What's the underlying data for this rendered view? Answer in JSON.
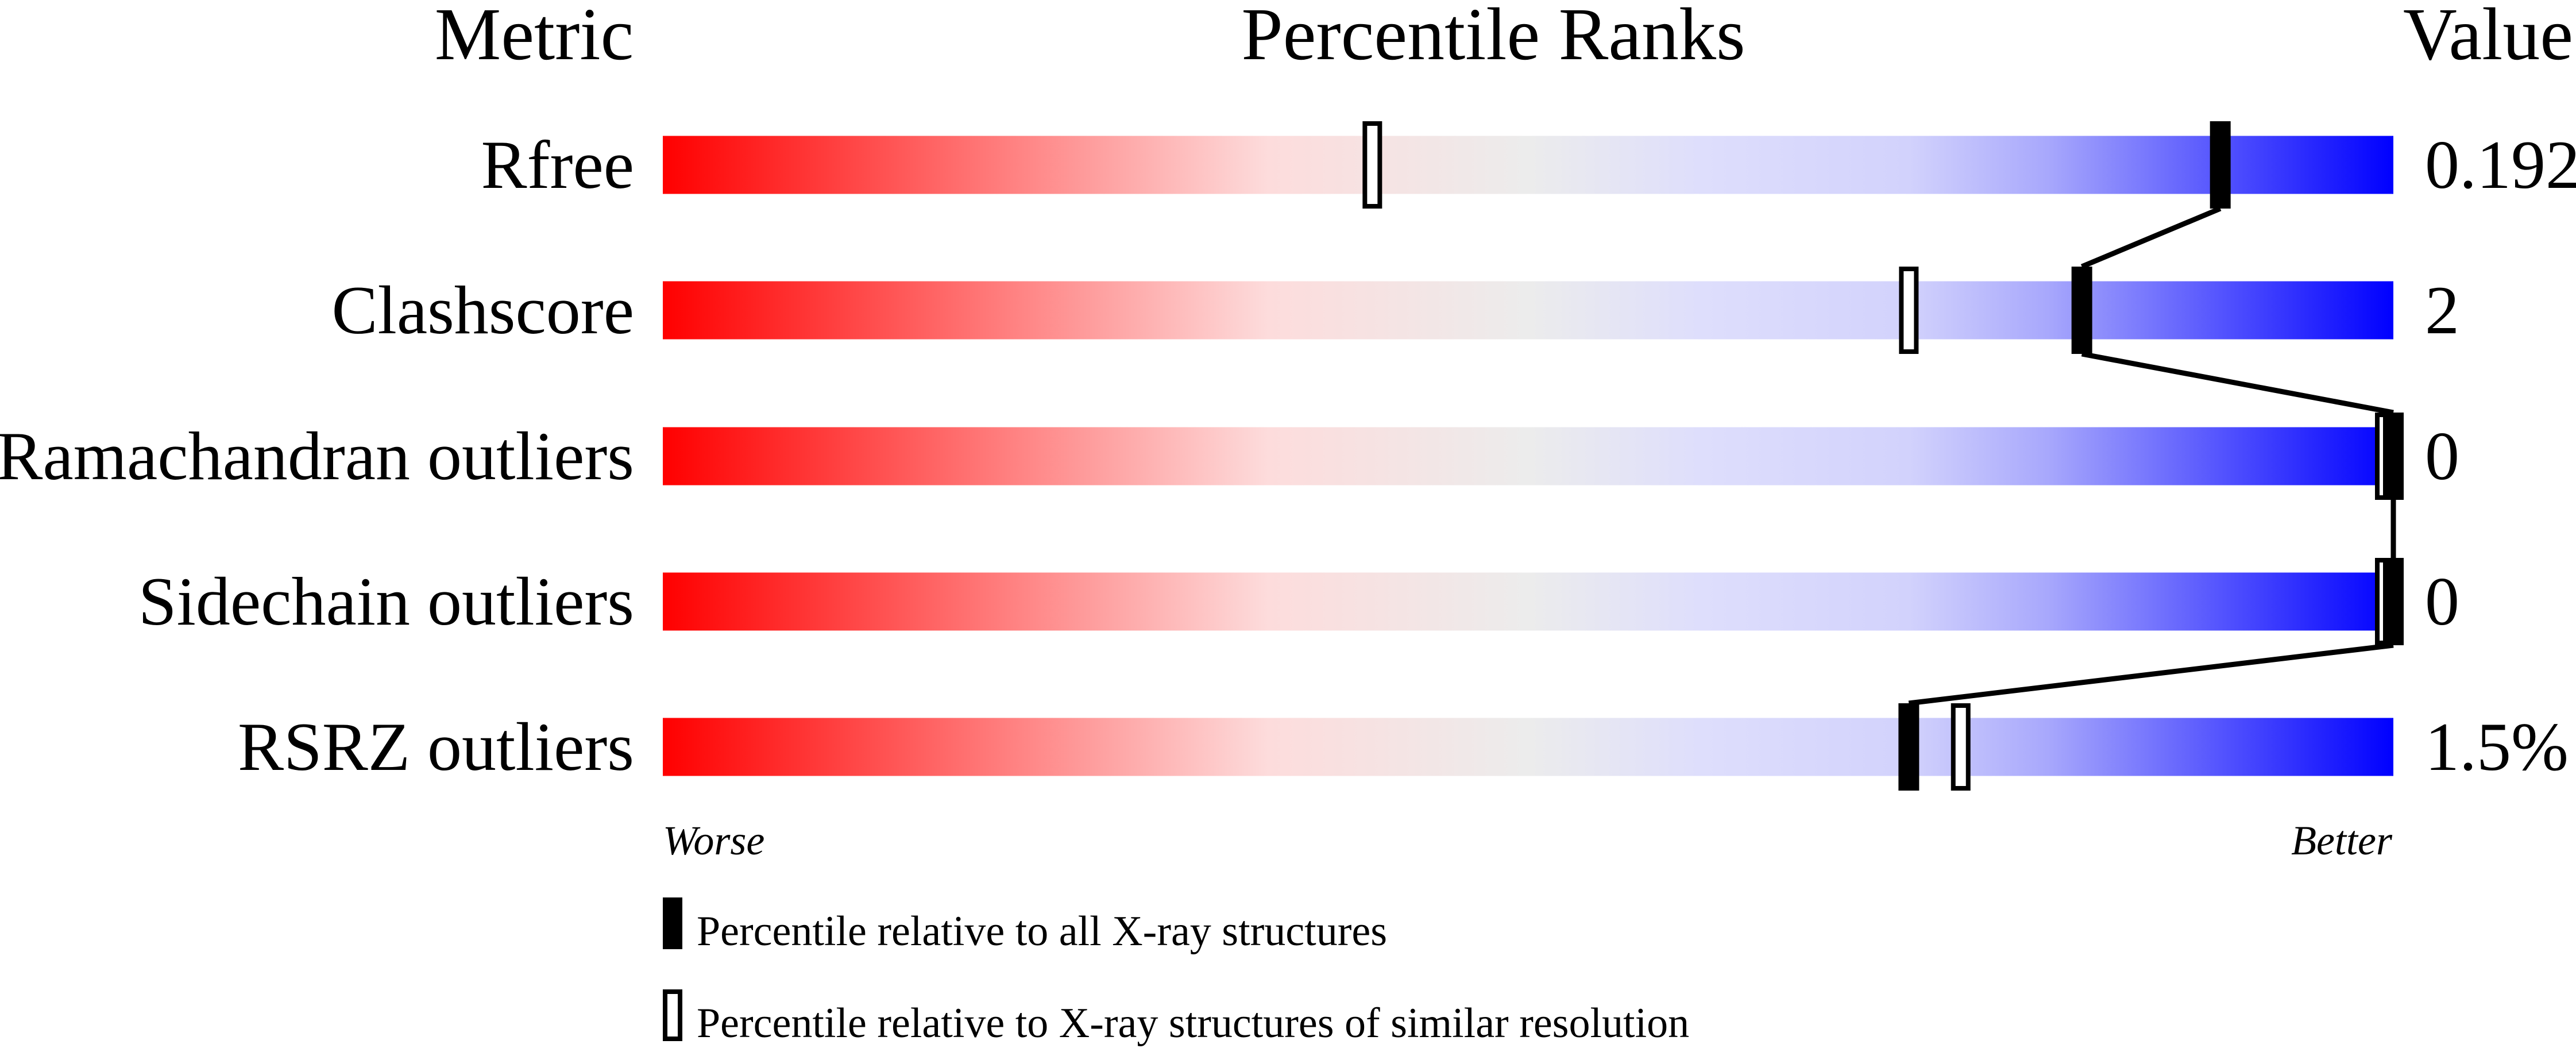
{
  "chart_data": {
    "type": "percentile-bar",
    "headers": {
      "metric": "Metric",
      "ranks": "Percentile Ranks",
      "value": "Value"
    },
    "axis": {
      "min": 0,
      "max": 100,
      "left_label": "Worse",
      "right_label": "Better"
    },
    "gradient_colors": [
      "#ff0000",
      "#ff8080",
      "#fddcdc",
      "#ececec",
      "#dedefc",
      "#d2d2fc",
      "#a8a8fc",
      "#0000ff"
    ],
    "rows": [
      {
        "metric": "Rfree",
        "value": "0.192",
        "percentile_all": 90,
        "percentile_similar": 41
      },
      {
        "metric": "Clashscore",
        "value": "2",
        "percentile_all": 82,
        "percentile_similar": 72
      },
      {
        "metric": "Ramachandran outliers",
        "value": "0",
        "percentile_all": 100,
        "percentile_similar": 100
      },
      {
        "metric": "Sidechain outliers",
        "value": "0",
        "percentile_all": 100,
        "percentile_similar": 100
      },
      {
        "metric": "RSRZ outliers",
        "value": "1.5%",
        "percentile_all": 72,
        "percentile_similar": 75
      }
    ],
    "legend": {
      "filled": "Percentile relative to all X-ray structures",
      "open": "Percentile relative to X-ray structures of similar resolution"
    }
  }
}
